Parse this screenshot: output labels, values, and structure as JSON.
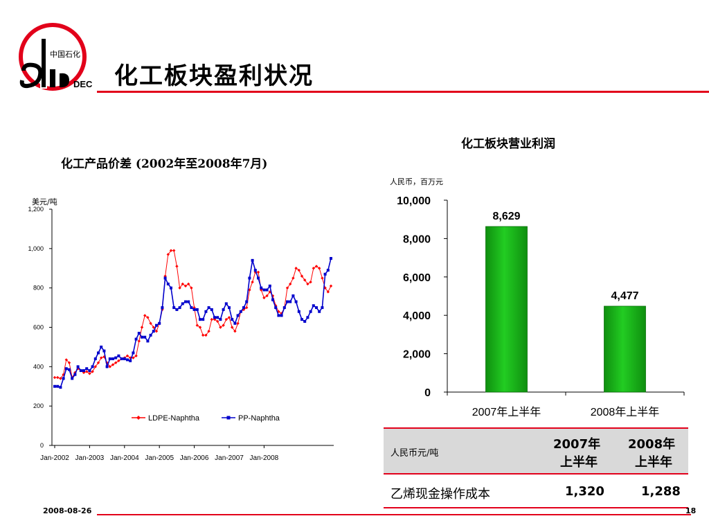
{
  "slide": {
    "title": "化工板块盈利状况",
    "footer_date": "2008-08-26",
    "page_number": "18",
    "accent_color": "#e2001a",
    "logo_icon": "sinopec-logo-icon"
  },
  "chart_data": [
    {
      "type": "line",
      "title": "化工产品价差 (2002年至2008年7月)",
      "ylabel": "美元/吨",
      "xlabel": "",
      "ylim": [
        0,
        1200
      ],
      "yticks": [
        "0",
        "200",
        "400",
        "600",
        "800",
        "1,000",
        "1,200"
      ],
      "ytick_values": [
        0,
        200,
        400,
        600,
        800,
        1000,
        1200
      ],
      "xticks": [
        "Jan-2002",
        "Jan-2003",
        "Jan-2004",
        "Jan-2005",
        "Jan-2006",
        "Jan-2007",
        "Jan-2008"
      ],
      "grid": false,
      "legend": "bottom-center",
      "series": [
        {
          "name": "LDPE-Naphtha",
          "color": "#ff0000",
          "marker": "diamond",
          "values": [
            345,
            345,
            340,
            360,
            435,
            420,
            345,
            370,
            390,
            380,
            370,
            375,
            365,
            375,
            400,
            420,
            445,
            450,
            420,
            400,
            410,
            420,
            430,
            440,
            445,
            455,
            445,
            445,
            455,
            530,
            600,
            660,
            650,
            620,
            600,
            580,
            620,
            690,
            860,
            970,
            990,
            990,
            910,
            800,
            820,
            810,
            820,
            800,
            700,
            610,
            600,
            560,
            560,
            580,
            640,
            640,
            630,
            600,
            610,
            640,
            650,
            600,
            580,
            620,
            680,
            690,
            700,
            790,
            830,
            880,
            880,
            790,
            750,
            760,
            780,
            760,
            710,
            680,
            670,
            700,
            800,
            820,
            850,
            900,
            890,
            860,
            840,
            820,
            830,
            900,
            910,
            900,
            850,
            800,
            780,
            810
          ]
        },
        {
          "name": "PP-Naphtha",
          "color": "#0000cc",
          "marker": "square",
          "values": [
            300,
            300,
            295,
            340,
            390,
            385,
            340,
            360,
            400,
            380,
            380,
            390,
            380,
            400,
            440,
            470,
            500,
            480,
            400,
            440,
            440,
            445,
            455,
            440,
            440,
            435,
            430,
            470,
            540,
            570,
            550,
            550,
            530,
            560,
            580,
            610,
            620,
            700,
            850,
            820,
            800,
            700,
            690,
            700,
            720,
            730,
            730,
            700,
            690,
            690,
            640,
            640,
            680,
            700,
            690,
            650,
            650,
            640,
            690,
            720,
            700,
            640,
            620,
            660,
            680,
            700,
            730,
            850,
            940,
            890,
            850,
            800,
            790,
            790,
            810,
            740,
            700,
            660,
            660,
            700,
            730,
            730,
            760,
            730,
            680,
            640,
            630,
            650,
            680,
            710,
            700,
            680,
            700,
            870,
            890,
            950
          ]
        }
      ]
    },
    {
      "type": "bar",
      "title": "化工板块营业利润",
      "ylabel": "人民币，百万元",
      "xlabel": "",
      "ylim": [
        0,
        10000
      ],
      "yticks": [
        "0",
        "2,000",
        "4,000",
        "6,000",
        "8,000",
        "10,000"
      ],
      "ytick_values": [
        0,
        2000,
        4000,
        6000,
        8000,
        10000
      ],
      "categories": [
        "2007年上半年",
        "2008年上半年"
      ],
      "values": [
        8629,
        4477
      ],
      "data_labels": [
        "8,629",
        "4,477"
      ],
      "bar_color": "#22cc22",
      "grid": false
    }
  ],
  "table": {
    "unit_label": "人民币元/吨",
    "col1_line1": "2007年",
    "col1_line2": "上半年",
    "col2_line1": "2008年",
    "col2_line2": "上半年",
    "row_label": "乙烯现金操作成本",
    "row_v1": "1,320",
    "row_v2": "1,288"
  }
}
